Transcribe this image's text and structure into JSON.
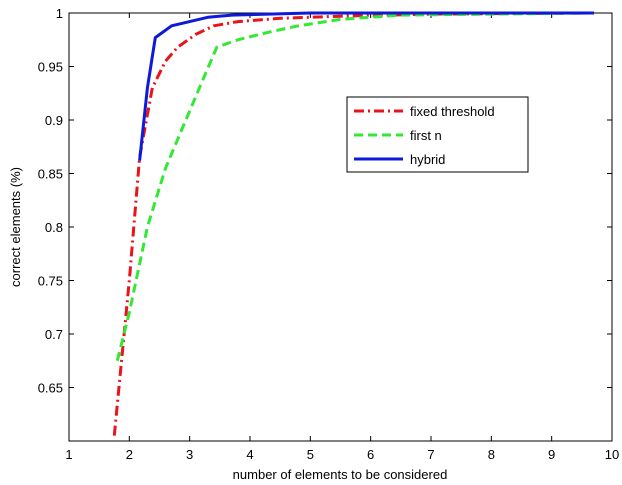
{
  "chart_data": {
    "type": "line",
    "title": "",
    "xlabel": "number of elements to be considered",
    "ylabel": "correct elements (%)",
    "xlim": [
      1,
      10
    ],
    "ylim": [
      0.6,
      1.0
    ],
    "xticks": [
      1,
      2,
      3,
      4,
      5,
      6,
      7,
      8,
      9,
      10
    ],
    "yticks": [
      0.65,
      0.7,
      0.75,
      0.8,
      0.85,
      0.9,
      0.95,
      1
    ],
    "grid": false,
    "legend_position": "upper-right-inside",
    "series": [
      {
        "name": "fixed threshold",
        "color": "#e8141a",
        "style": "dash-dot",
        "x": [
          1.75,
          2.0,
          2.17,
          2.38,
          2.6,
          2.8,
          3.1,
          3.4,
          3.8,
          4.5,
          5.5,
          7.0,
          9.7
        ],
        "y": [
          0.605,
          0.75,
          0.865,
          0.93,
          0.955,
          0.968,
          0.98,
          0.988,
          0.992,
          0.995,
          0.997,
          0.999,
          1.0
        ]
      },
      {
        "name": "first n",
        "color": "#33e833",
        "style": "dashed",
        "x": [
          1.8,
          2.0,
          2.3,
          2.6,
          2.9,
          3.2,
          3.45,
          3.8,
          4.3,
          4.8,
          5.5,
          6.5,
          9.7
        ],
        "y": [
          0.675,
          0.72,
          0.8,
          0.855,
          0.895,
          0.935,
          0.968,
          0.975,
          0.982,
          0.988,
          0.994,
          0.998,
          1.0
        ]
      },
      {
        "name": "hybrid",
        "color": "#0d1ad9",
        "style": "solid",
        "x": [
          2.17,
          2.3,
          2.43,
          2.7,
          3.0,
          3.3,
          3.7,
          4.3,
          5.0,
          9.7
        ],
        "y": [
          0.862,
          0.93,
          0.977,
          0.988,
          0.992,
          0.996,
          0.998,
          0.999,
          1.0,
          1.0
        ]
      }
    ]
  }
}
